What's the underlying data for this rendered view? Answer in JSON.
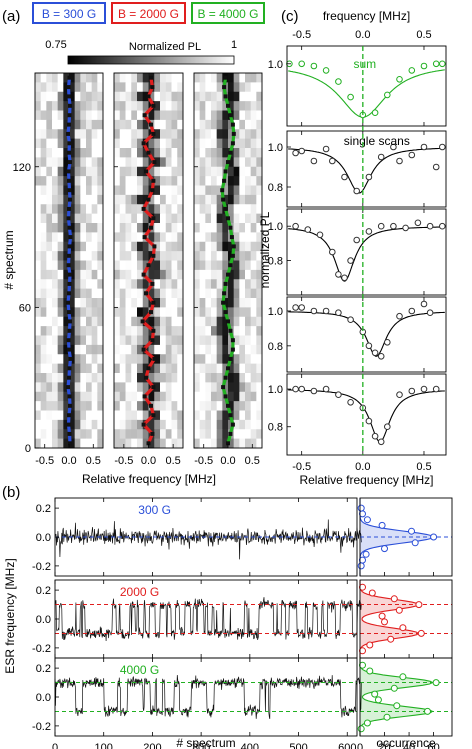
{
  "panel_labels": {
    "a": "(a)",
    "b": "(b)",
    "c": "(c)"
  },
  "colors": {
    "blue": "#2b4fd8",
    "red": "#e01e1e",
    "green": "#22b022",
    "axis": "#000000"
  },
  "chart_data": [
    {
      "id": "a",
      "type": "heatmap",
      "colorbar": {
        "label": "Normalized PL",
        "min": 0.75,
        "max": 1
      },
      "xlabel": "Relative frequency [MHz]",
      "ylabel": "# spectrum",
      "xlim": [
        -0.7,
        0.7
      ],
      "ylim": [
        0,
        160
      ],
      "xticks": [
        -0.5,
        0.0,
        0.5
      ],
      "xtick_labels": [
        "-0.5",
        "0.0",
        "0.5"
      ],
      "yticks": [
        0,
        60,
        120
      ],
      "ytick_labels": [
        "0",
        "60",
        "120"
      ],
      "subplots": [
        {
          "label": "B = 300 G",
          "color": "#2b4fd8",
          "split": 0.0,
          "trace": [
            0.02,
            0.01,
            -0.01,
            0.0,
            0.02,
            0.01,
            -0.02,
            0.0,
            0.01,
            0.03,
            0.0,
            -0.01,
            0.01,
            0.02,
            0.0,
            -0.02,
            0.0,
            0.01,
            0.02,
            -0.01,
            0.0,
            0.01,
            0.03,
            0.01,
            -0.01,
            0.0,
            0.02,
            0.01,
            0.0,
            -0.01,
            0.02,
            0.0,
            0.01,
            -0.02,
            0.0,
            0.01,
            0.02,
            0.0,
            -0.01,
            0.01
          ]
        },
        {
          "label": "B = 2000 G",
          "color": "#e01e1e",
          "split": 0.1,
          "trace": [
            0.0,
            0.08,
            -0.1,
            0.1,
            0.05,
            -0.08,
            0.1,
            -0.05,
            0.0,
            0.12,
            -0.1,
            0.08,
            0.1,
            -0.12,
            0.05,
            0.1,
            -0.05,
            0.08,
            -0.1,
            0.0,
            0.1,
            0.12,
            -0.08,
            0.05,
            0.1,
            -0.1,
            0.0,
            0.08,
            0.1,
            -0.05,
            0.12,
            0.0,
            -0.1,
            0.1,
            0.05,
            -0.08,
            0.1,
            0.0,
            0.08,
            0.05
          ]
        },
        {
          "label": "B = 4000 G",
          "color": "#22b022",
          "split": 0.1,
          "trace": [
            0.0,
            0.05,
            0.1,
            0.05,
            0.0,
            -0.05,
            -0.1,
            -0.05,
            0.0,
            0.05,
            0.1,
            0.1,
            0.05,
            0.0,
            -0.05,
            -0.1,
            -0.08,
            -0.05,
            0.0,
            0.05,
            0.1,
            0.12,
            0.08,
            0.05,
            0.0,
            -0.05,
            -0.1,
            -0.12,
            -0.08,
            -0.05,
            0.0,
            0.05,
            0.1,
            0.12,
            0.1,
            0.05,
            0.0,
            -0.05,
            -0.08,
            -0.05
          ]
        }
      ]
    },
    {
      "id": "b",
      "type": "line",
      "xlabel": "# spectrum",
      "ylabel": "ESR frequency [MHz]",
      "xlim": [
        0,
        620
      ],
      "ylim": [
        -0.27,
        0.27
      ],
      "xticks": [
        0,
        100,
        200,
        300,
        400,
        500,
        600
      ],
      "xtick_labels": [
        "0",
        "100",
        "200",
        "300",
        "400",
        "500",
        "600"
      ],
      "yticks": [
        -0.2,
        0.0,
        0.2
      ],
      "ytick_labels": [
        "-0.2",
        "0.0",
        "0.2"
      ],
      "hist_xlabel": "occurrence",
      "hist_xlim": [
        0,
        75
      ],
      "hist_xticks": [
        0,
        20,
        40,
        60
      ],
      "hist_xtick_labels": [
        "0",
        "20",
        "40",
        "60"
      ],
      "series": [
        {
          "name": "300 G",
          "color": "#2b4fd8",
          "levels": [
            0.0
          ],
          "sigma": 0.04,
          "hist_y": [
            -0.2,
            -0.16,
            -0.12,
            -0.08,
            -0.04,
            0.0,
            0.04,
            0.08,
            0.12,
            0.16,
            0.2
          ],
          "hist_counts": [
            1,
            2,
            5,
            20,
            45,
            60,
            42,
            18,
            6,
            2,
            1
          ]
        },
        {
          "name": "2000 G",
          "color": "#e01e1e",
          "levels": [
            0.1,
            -0.1
          ],
          "sigma": 0.035,
          "hist_y": [
            -0.22,
            -0.18,
            -0.14,
            -0.1,
            -0.06,
            -0.02,
            0.02,
            0.06,
            0.1,
            0.14,
            0.18,
            0.22
          ],
          "hist_counts": [
            2,
            8,
            25,
            50,
            35,
            20,
            18,
            32,
            48,
            28,
            10,
            2
          ]
        },
        {
          "name": "4000 G",
          "color": "#22b022",
          "levels": [
            0.1,
            -0.1
          ],
          "sigma": 0.035,
          "hist_y": [
            -0.22,
            -0.18,
            -0.14,
            -0.1,
            -0.06,
            -0.02,
            0.02,
            0.06,
            0.1,
            0.14,
            0.18,
            0.22
          ],
          "hist_counts": [
            1,
            6,
            22,
            55,
            30,
            15,
            12,
            28,
            62,
            35,
            8,
            2
          ]
        }
      ]
    },
    {
      "id": "c",
      "type": "scatter",
      "top_xlabel": "frequency [MHz]",
      "xlabel": "Relative frequency [MHz]",
      "ylabel": "normalized PL",
      "xlim": [
        -0.62,
        0.68
      ],
      "xticks": [
        -0.5,
        0.0,
        0.5
      ],
      "xtick_labels": [
        "-0.5",
        "0.0",
        "0.5"
      ],
      "subplots": [
        {
          "annotation": "sum",
          "color": "#22b022",
          "ylim": [
            0.86,
            1.04
          ],
          "yticks": [
            1.0
          ],
          "ytick_labels": [
            "1.0"
          ],
          "center": 0.0,
          "width": 0.24,
          "depth": 0.12,
          "x": [
            -0.6,
            -0.5,
            -0.4,
            -0.3,
            -0.2,
            -0.1,
            0.0,
            0.1,
            0.2,
            0.3,
            0.4,
            0.5,
            0.6,
            0.65
          ],
          "y": [
            1.0,
            1.0,
            0.995,
            0.985,
            0.96,
            0.925,
            0.885,
            0.89,
            0.93,
            0.965,
            0.985,
            0.995,
            1.0,
            1.0
          ]
        },
        {
          "annotation": "single scans",
          "color": "#000000",
          "ylim": [
            0.7,
            1.08
          ],
          "yticks": [
            0.8,
            1.0
          ],
          "ytick_labels": [
            "0.8",
            "1.0"
          ],
          "center": -0.03,
          "width": 0.12,
          "depth": 0.23,
          "x": [
            -0.55,
            -0.5,
            -0.4,
            -0.3,
            -0.25,
            -0.15,
            -0.05,
            0.05,
            0.15,
            0.25,
            0.3,
            0.4,
            0.5,
            0.6,
            0.65
          ],
          "y": [
            0.97,
            0.98,
            0.93,
            0.99,
            0.93,
            0.85,
            0.78,
            0.85,
            0.95,
            1.0,
            0.93,
            0.96,
            1.0,
            0.9,
            1.0
          ]
        },
        {
          "annotation": "",
          "color": "#000000",
          "ylim": [
            0.6,
            1.1
          ],
          "yticks": [
            0.8,
            1.0
          ],
          "ytick_labels": [
            "0.8",
            "1.0"
          ],
          "center": -0.15,
          "width": 0.1,
          "depth": 0.32,
          "x": [
            -0.55,
            -0.45,
            -0.35,
            -0.25,
            -0.2,
            -0.15,
            -0.1,
            -0.05,
            0.05,
            0.15,
            0.25,
            0.35,
            0.45,
            0.55,
            0.65
          ],
          "y": [
            1.0,
            0.98,
            0.95,
            0.85,
            0.72,
            0.7,
            0.8,
            0.92,
            0.97,
            1.0,
            1.0,
            0.99,
            1.02,
            1.0,
            1.0
          ]
        },
        {
          "annotation": "",
          "color": "#000000",
          "ylim": [
            0.65,
            1.08
          ],
          "yticks": [
            0.8,
            1.0
          ],
          "ytick_labels": [
            "0.8",
            "1.0"
          ],
          "center": 0.11,
          "width": 0.1,
          "depth": 0.26,
          "x": [
            -0.55,
            -0.5,
            -0.4,
            -0.3,
            -0.2,
            -0.1,
            0.0,
            0.05,
            0.1,
            0.15,
            0.2,
            0.3,
            0.4,
            0.5,
            0.55
          ],
          "y": [
            1.02,
            1.02,
            1.0,
            1.0,
            0.99,
            0.95,
            0.88,
            0.8,
            0.76,
            0.74,
            0.82,
            0.97,
            1.0,
            1.04,
            0.99
          ]
        },
        {
          "annotation": "",
          "color": "#000000",
          "ylim": [
            0.65,
            1.08
          ],
          "yticks": [
            0.8,
            1.0
          ],
          "ytick_labels": [
            "0.8",
            "1.0"
          ],
          "center": 0.14,
          "width": 0.1,
          "depth": 0.28,
          "x": [
            -0.55,
            -0.5,
            -0.4,
            -0.3,
            -0.2,
            -0.1,
            0.0,
            0.05,
            0.1,
            0.15,
            0.2,
            0.3,
            0.4,
            0.5,
            0.6
          ],
          "y": [
            1.0,
            1.0,
            0.99,
            1.0,
            0.97,
            0.93,
            0.9,
            0.83,
            0.75,
            0.72,
            0.8,
            0.97,
            0.99,
            1.0,
            1.0
          ]
        }
      ]
    }
  ]
}
